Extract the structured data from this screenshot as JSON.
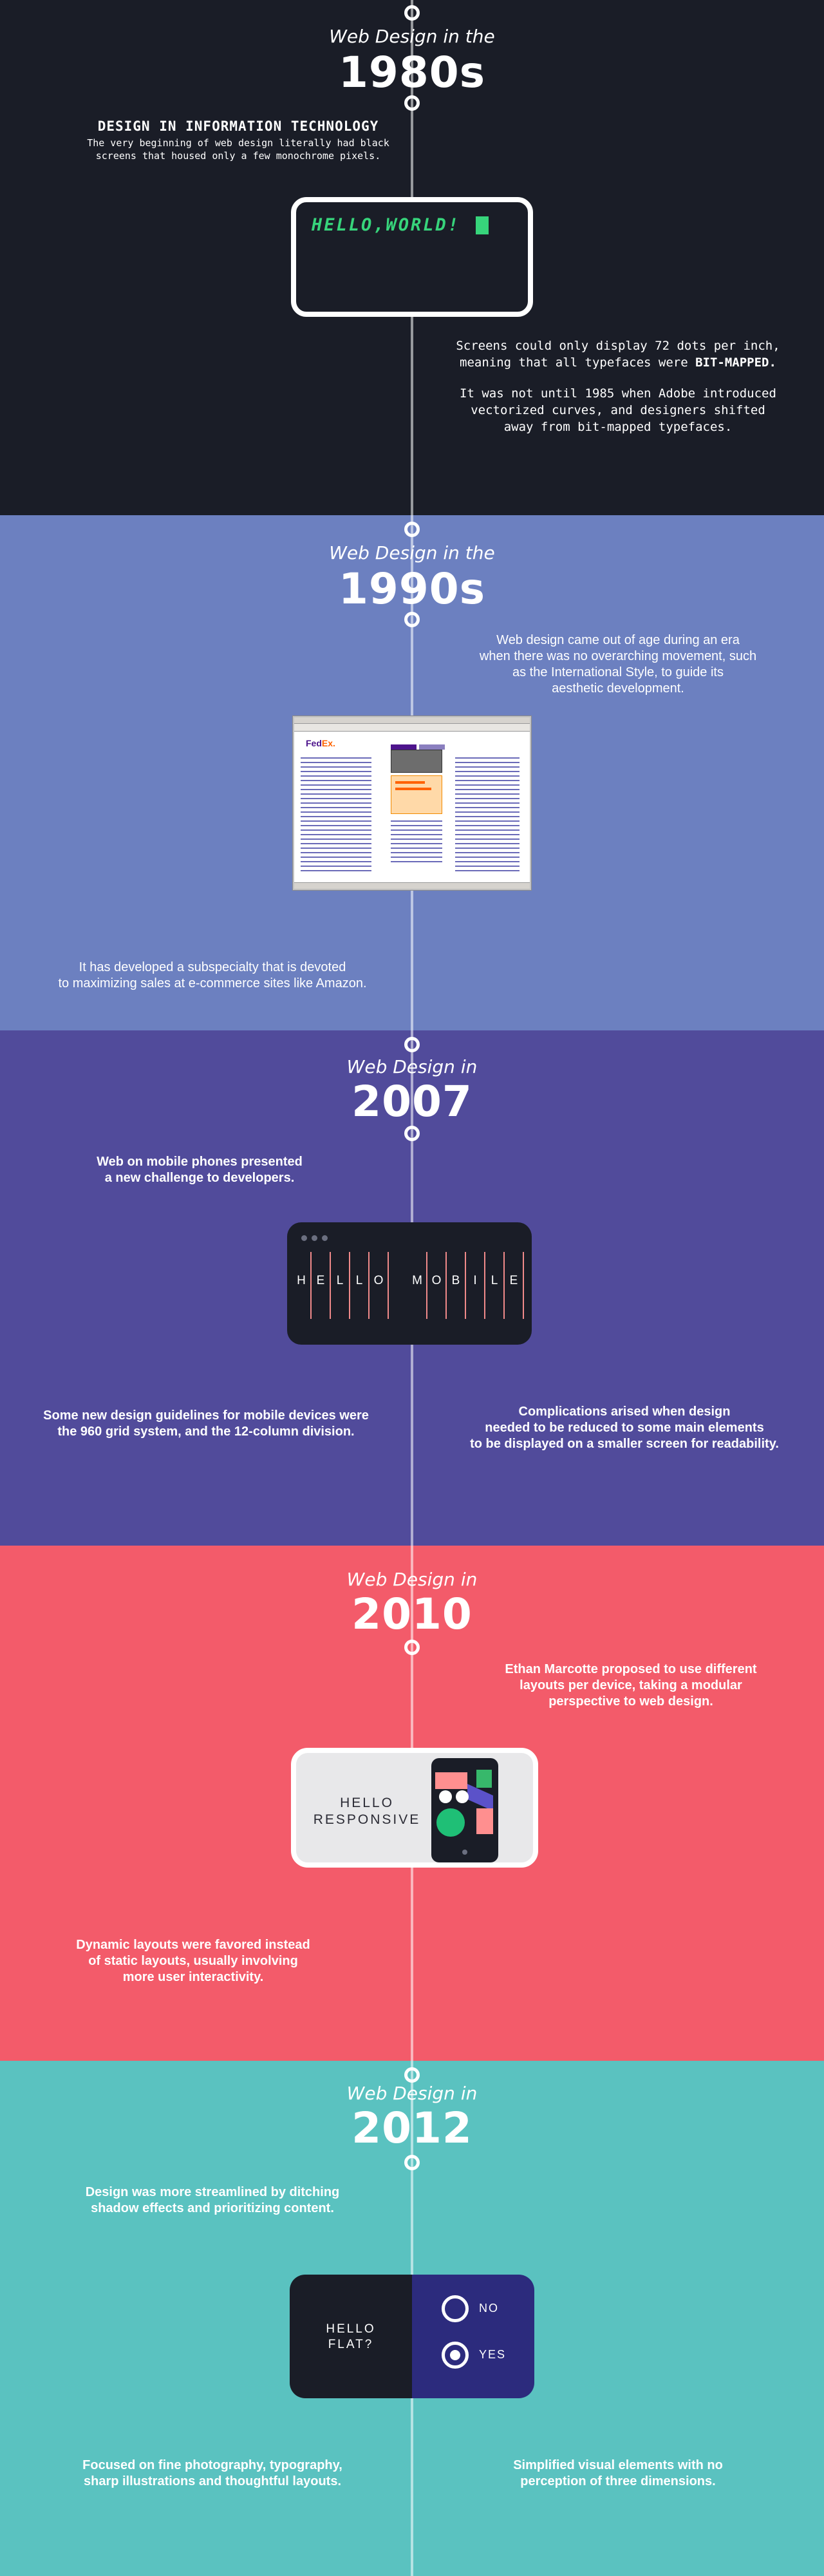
{
  "era1980": {
    "heading_top": "Web Design in the",
    "heading_year": "1980s",
    "subtitle": "DESIGN IN INFORMATION TECHNOLOGY",
    "intro_line1": "The very beginning of web design literally had black",
    "intro_line2": "screens that housed only a few monochrome pixels.",
    "screen_text": "HELLO,WORLD!",
    "body1_line1": "Screens could only display 72 dots per inch,",
    "body1_line2": "meaning that all typefaces were",
    "body1_strong": "BIT-MAPPED.",
    "body2_line1": "It was not until 1985 when Adobe introduced",
    "body2_line2": "vectorized curves, and designers shifted",
    "body2_line3": "away from bit-mapped typefaces.",
    "colors": {
      "background": "#1a1d27",
      "screen_text": "#37d47b"
    }
  },
  "era1990": {
    "heading_top": "Web Design in the",
    "heading_year": "1990s",
    "body1_line1": "Web design came out of age during an era",
    "body1_line2": "when there was no overarching movement, such",
    "body1_line3": "as the International Style, to guide its",
    "body1_line4": "aesthetic development.",
    "browser_logo_a": "Fed",
    "browser_logo_b": "Ex.",
    "body2_line1": "It has developed a subspecialty that is devoted",
    "body2_line2": "to maximizing sales at e-commerce sites like Amazon.",
    "colors": {
      "background": "#6c80c0"
    }
  },
  "era2007": {
    "heading_top": "Web Design in",
    "heading_year": "2007",
    "body1_line1": "Web on mobile phones presented",
    "body1_line2": "a new challenge to developers.",
    "mobile_letters": [
      "H",
      "E",
      "L",
      "L",
      "O",
      "M",
      "O",
      "B",
      "I",
      "L",
      "E"
    ],
    "body2_line1": "Some new design guidelines for mobile devices were",
    "body2_line2": "the 960 grid system, and the 12-column division.",
    "body3_line1": "Complications arised when design",
    "body3_line2": "needed to be reduced to some main elements",
    "body3_line3": "to be displayed on a smaller screen for readability.",
    "colors": {
      "background": "#514b9b",
      "grid_lines": "#f08a8a"
    }
  },
  "era2010": {
    "heading_top": "Web Design in",
    "heading_year": "2010",
    "body1_line1": "Ethan Marcotte proposed to use different",
    "body1_line2": "layouts per device, taking a modular",
    "body1_line3": "perspective to web design.",
    "device_word1": "HELLO",
    "device_word2": "RESPONSIVE",
    "body2_line1": "Dynamic layouts were favored instead",
    "body2_line2": "of static layouts, usually involving",
    "body2_line3": "more user interactivity.",
    "colors": {
      "background": "#f35b6a"
    }
  },
  "era2012": {
    "heading_top": "Web Design in",
    "heading_year": "2012",
    "body1_line1": "Design was more streamlined by ditching",
    "body1_line2": "shadow effects and prioritizing content.",
    "device_word1": "HELLO",
    "device_word2": "FLAT?",
    "option_no": "NO",
    "option_yes": "YES",
    "body2_line1": "Focused on fine photography, typography,",
    "body2_line2": "sharp illustrations and thoughtful layouts.",
    "body3_line1": "Simplified visual elements with no",
    "body3_line2": "perception of three dimensions.",
    "colors": {
      "background": "#5ac2c0",
      "device_right": "#2c2b7d"
    }
  }
}
